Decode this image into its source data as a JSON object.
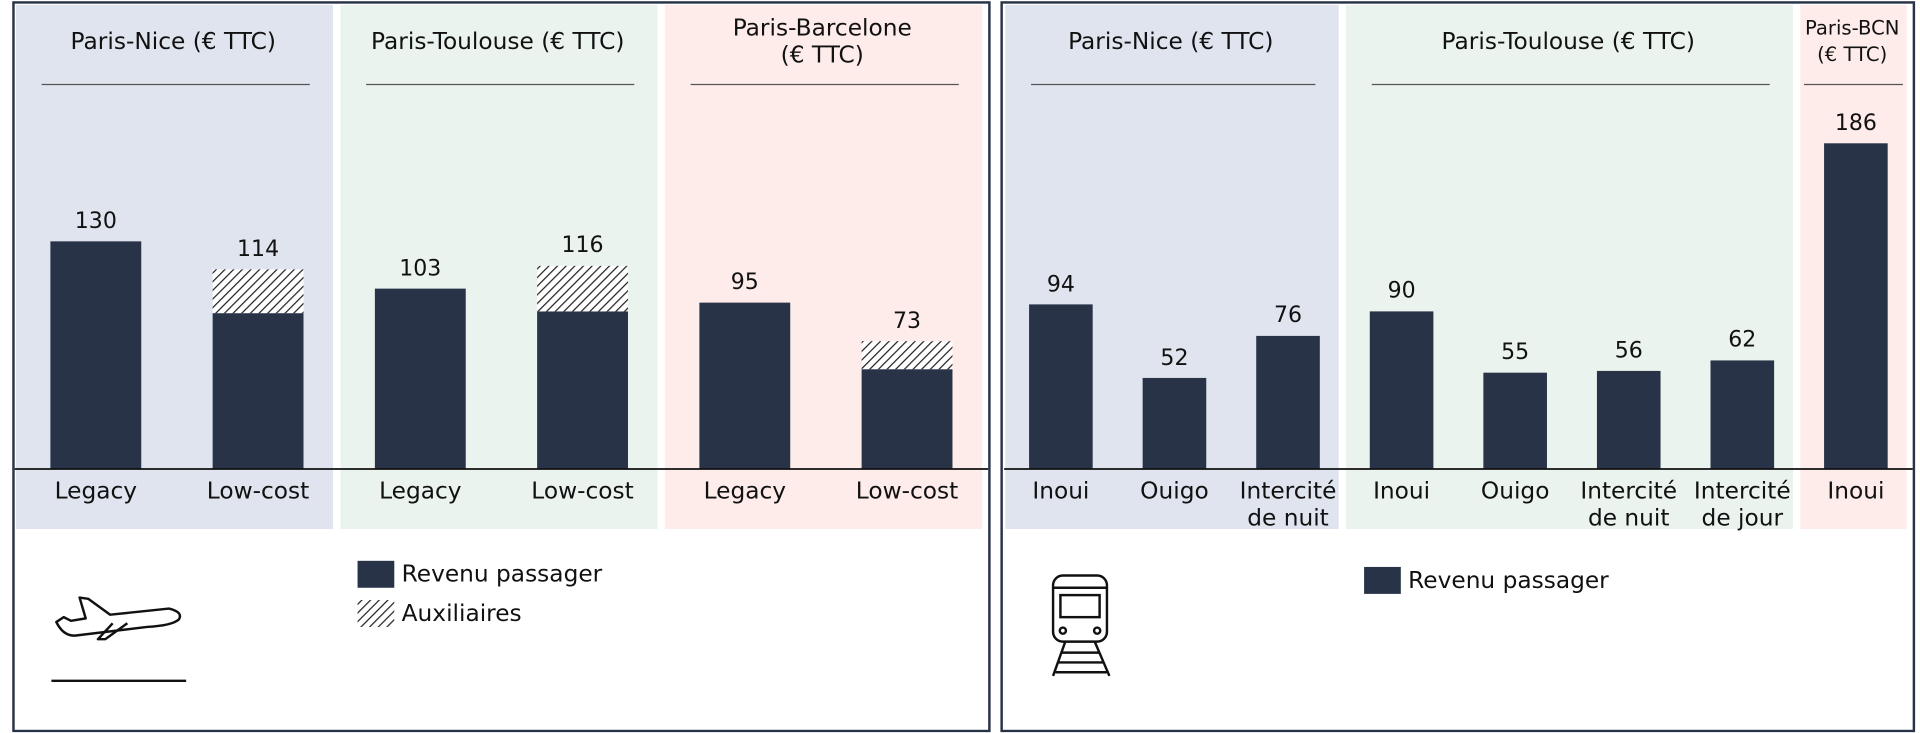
{
  "chart_data": [
    {
      "type": "bar",
      "stacked": true,
      "groups": [
        {
          "title": "Paris-Nice (€ TTC)",
          "color": "#dfe4ee",
          "categories": [
            "Legacy",
            "Low-cost"
          ]
        },
        {
          "title": "Paris-Toulouse (€ TTC)",
          "color": "#eaf3ee",
          "categories": [
            "Legacy",
            "Low-cost"
          ]
        },
        {
          "title": "Paris-Barcelone\n(€ TTC)",
          "color": "#fdecea",
          "categories": [
            "Legacy",
            "Low-cost"
          ]
        }
      ],
      "series": [
        {
          "name": "Revenu passager",
          "color": "#283347",
          "values": [
            130,
            89,
            103,
            90,
            95,
            57
          ]
        },
        {
          "name": "Auxiliaires",
          "color": "#283347",
          "hatch": true,
          "values": [
            null,
            25,
            null,
            26,
            null,
            16
          ]
        }
      ],
      "totals": [
        130,
        114,
        103,
        116,
        95,
        73
      ]
    },
    {
      "type": "bar",
      "stacked": false,
      "groups": [
        {
          "title": "Paris-Nice (€ TTC)",
          "color": "#dfe4ee",
          "categories": [
            "Inoui",
            "Ouigo",
            "Intercité de nuit"
          ]
        },
        {
          "title": "Paris-Toulouse (€ TTC)",
          "color": "#eaf3ee",
          "categories": [
            "Inoui",
            "Ouigo",
            "Intercité de nuit",
            "Intercité de jour"
          ]
        },
        {
          "title": "Paris-BCN\n(€ TTC)",
          "color": "#fdecea",
          "categories": [
            "Inoui"
          ]
        }
      ],
      "series": [
        {
          "name": "Revenu passager",
          "color": "#283347",
          "values": [
            94,
            52,
            76,
            90,
            55,
            56,
            62,
            186
          ]
        }
      ]
    }
  ]
}
